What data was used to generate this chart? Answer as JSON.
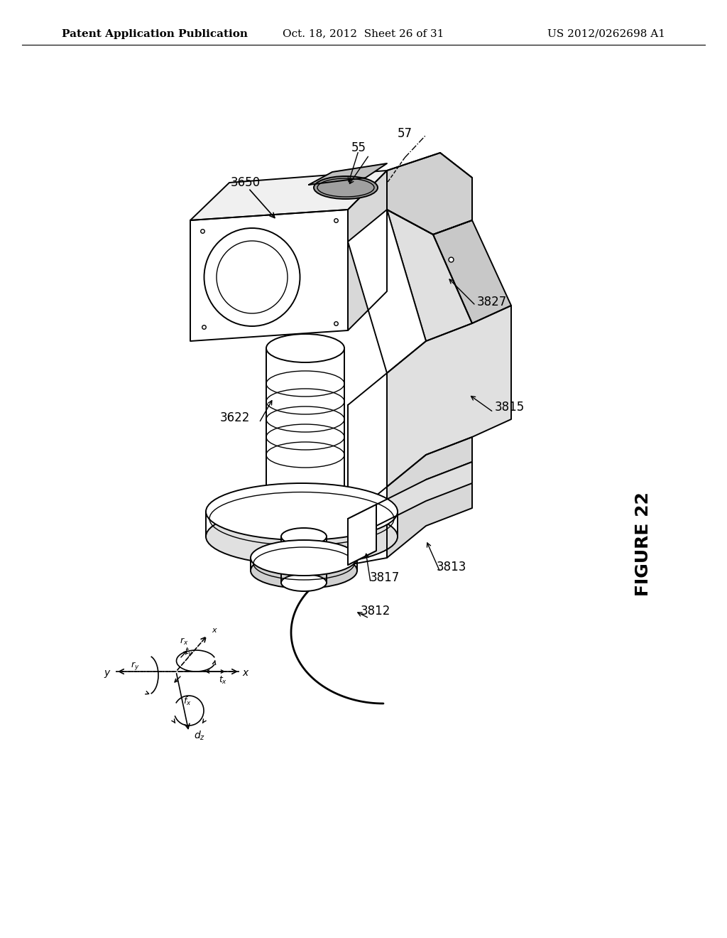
{
  "background_color": "#ffffff",
  "header_left": "Patent Application Publication",
  "header_center": "Oct. 18, 2012  Sheet 26 of 31",
  "header_right": "US 2012/0262698 A1",
  "figure_label": "FIGURE 22",
  "text_color": "#000000",
  "line_color": "#000000",
  "font_size_header": 11,
  "font_size_labels": 11,
  "font_size_figure": 18
}
